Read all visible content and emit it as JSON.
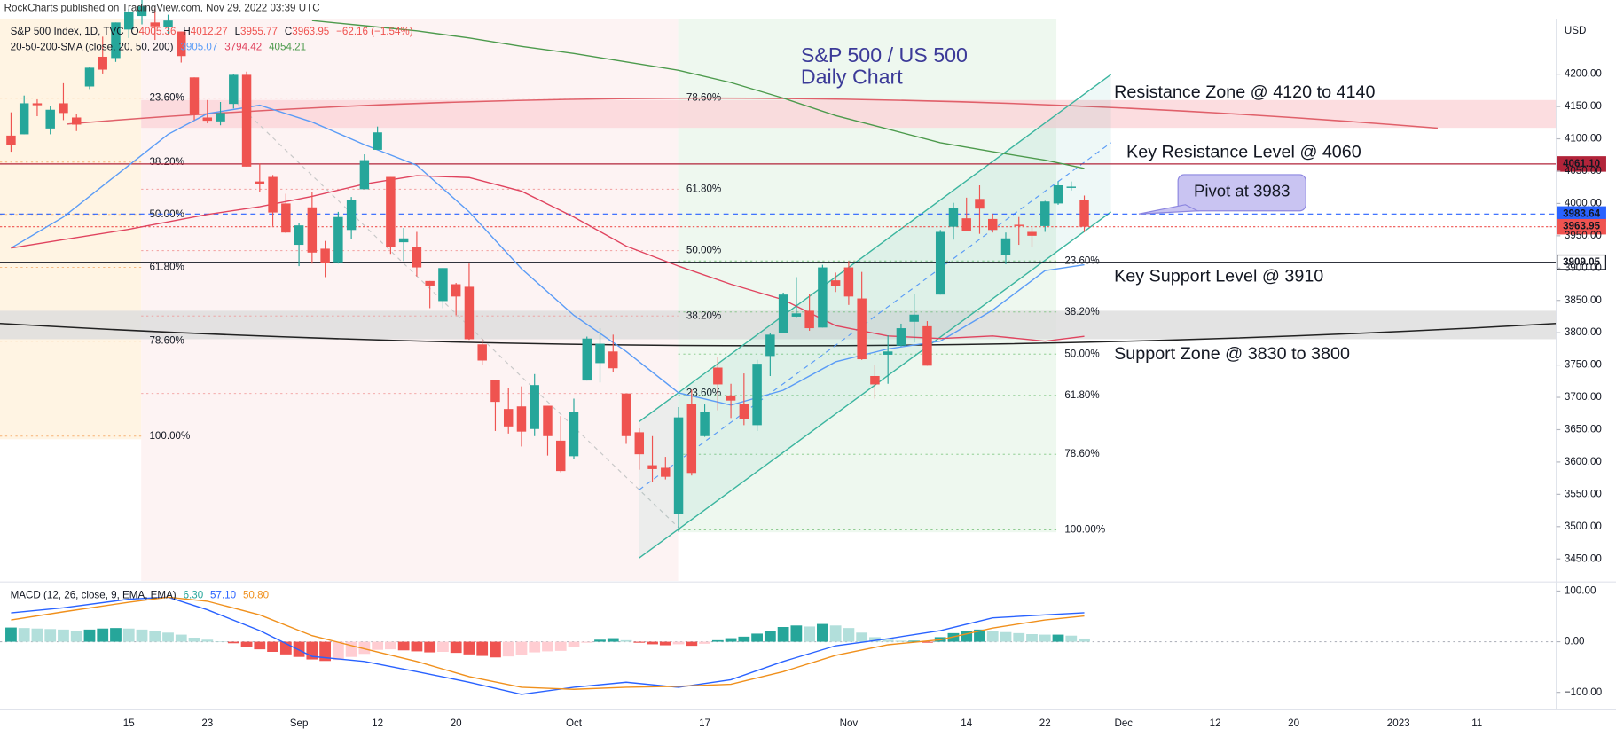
{
  "header": "RockCharts published on TradingView.com, Nov 29, 2022 03:39 UTC",
  "chart_data": [
    {
      "type": "candlestick",
      "title": "S&P 500 / US 500",
      "subtitle": "Daily Chart",
      "symbol": "S&P 500 Index, 1D, TVC",
      "ohlc_prefixes": [
        "O",
        "H",
        "L",
        "C"
      ],
      "change_label": "−62.16 (−1.54%)",
      "indicator": "20-50-200-SMA (close, 20, 50, 200)",
      "currency": "USD",
      "categories": [
        null,
        null,
        null,
        null,
        null,
        null,
        null,
        null,
        null,
        null,
        "15",
        null,
        null,
        null,
        null,
        null,
        "23",
        null,
        null,
        null,
        null,
        null,
        null,
        "Sep",
        null,
        null,
        null,
        null,
        null,
        "12",
        null,
        null,
        null,
        null,
        null,
        "20",
        null,
        null,
        null,
        null,
        null,
        null,
        null,
        null,
        "Oct",
        null,
        null,
        null,
        null,
        null,
        null,
        null,
        null,
        null,
        "17",
        null,
        null,
        null,
        null,
        null,
        null,
        null,
        null,
        null,
        null,
        "Nov",
        null,
        null,
        null,
        null,
        null,
        null,
        null,
        null,
        "14",
        null,
        null,
        null,
        null,
        null,
        "22",
        null,
        null,
        null,
        null,
        null,
        "Dec",
        null,
        null,
        null,
        null,
        null,
        null,
        "12",
        null,
        null,
        null,
        null,
        null,
        "20",
        null,
        null,
        null,
        null,
        null,
        null,
        null,
        "2023",
        null,
        null,
        null,
        null,
        null,
        "11",
        null,
        null,
        null,
        null,
        null,
        null
      ],
      "open": [
        null,
        4105,
        4107,
        4155,
        4116,
        4155,
        4133,
        4181,
        4227,
        4225,
        4269,
        4290,
        4280,
        4273,
        4266,
        4195,
        4133,
        4127,
        4154,
        4199,
        4034,
        4041,
        4000,
        3936,
        3994,
        3930,
        3909,
        3959,
        4022,
        4083,
        4041,
        3940,
        3932,
        3880,
        3849,
        3875,
        3871,
        3782,
        3727,
        3682,
        3686,
        3651,
        3687,
        3633,
        3609,
        3726,
        3753,
        3771,
        3706,
        3646,
        3595,
        3591,
        3520,
        3690,
        3640,
        3746,
        3703,
        3690,
        3657,
        3764,
        3799,
        3825,
        3834,
        3808,
        3881,
        3901,
        3853,
        3733,
        3766,
        3780,
        3817,
        3810,
        3859,
        3964,
        3977,
        4007,
        3976,
        3920,
        3967,
        3956,
        3965,
        4000,
        4024,
        4005.36,
        null,
        null,
        null,
        null,
        null,
        null,
        null,
        null,
        null,
        null,
        null,
        null,
        null,
        null,
        null,
        null,
        null,
        null,
        null,
        null,
        null,
        null,
        null,
        null,
        null,
        null,
        null,
        null,
        null,
        null,
        null,
        null,
        null,
        null,
        null,
        null
      ],
      "high": [
        null,
        4141,
        4167,
        4161,
        4151,
        4186,
        4138,
        4211,
        4258,
        4280,
        4301,
        4325,
        4302,
        4292,
        4266,
        4195,
        4160,
        4157,
        4200,
        4204,
        4062,
        4044,
        4015,
        3970,
        4018,
        3942,
        3987,
        4010,
        4076,
        4119,
        4041,
        3962,
        3956,
        3880,
        3900,
        3877,
        3907,
        3790,
        3727,
        3715,
        3717,
        3736,
        3687,
        3671,
        3698,
        3794,
        3807,
        3797,
        3706,
        3652,
        3640,
        3608,
        3685,
        3712,
        3689,
        3762,
        3721,
        3737,
        3758,
        3799,
        3862,
        3886,
        3860,
        3905,
        3893,
        3911,
        3894,
        3750,
        3796,
        3814,
        3860,
        3818,
        3959,
        4001,
        4009,
        4028,
        3984,
        3955,
        3979,
        3962,
        4004,
        4034,
        4034,
        4012.27,
        null,
        null,
        null,
        null,
        null,
        null,
        null,
        null,
        null,
        null,
        null,
        null,
        null,
        null,
        null,
        null,
        null,
        null,
        null,
        null,
        null,
        null,
        null,
        null,
        null,
        null,
        null,
        null,
        null,
        null,
        null,
        null,
        null,
        null,
        null,
        null
      ],
      "low": [
        null,
        4080,
        4107,
        4135,
        4107,
        4129,
        4112,
        4177,
        4201,
        4219,
        4256,
        4277,
        4253,
        4262,
        4218,
        4129,
        4124,
        4121,
        4147,
        4057,
        4017,
        3965,
        3954,
        3903,
        3907,
        3886,
        3907,
        3945,
        4022,
        4083,
        3922,
        3911,
        3887,
        3838,
        3838,
        3827,
        3789,
        3750,
        3648,
        3644,
        3624,
        3640,
        3610,
        3584,
        3604,
        3726,
        3723,
        3739,
        3628,
        3588,
        3569,
        3573,
        3492,
        3579,
        3639,
        3680,
        3668,
        3657,
        3648,
        3733,
        3799,
        3824,
        3803,
        3808,
        3863,
        3843,
        3758,
        3698,
        3721,
        3779,
        3785,
        3749,
        3859,
        3944,
        3957,
        3953,
        3955,
        3906,
        3936,
        3933,
        3956,
        3998,
        4020,
        3955.77,
        null,
        null,
        null,
        null,
        null,
        null,
        null,
        null,
        null,
        null,
        null,
        null,
        null,
        null,
        null,
        null,
        null,
        null,
        null,
        null,
        null,
        null,
        null,
        null,
        null,
        null,
        null,
        null,
        null,
        null,
        null,
        null,
        null,
        null,
        null,
        null
      ],
      "close": [
        null,
        4091,
        4155,
        4152,
        4145,
        4140,
        4122,
        4210,
        4207,
        4280,
        4297,
        4305,
        4274,
        4283,
        4228,
        4137,
        4128,
        4140,
        4199,
        4057,
        4030,
        3986,
        3955,
        3966,
        3924,
        3908,
        3979,
        4006,
        4067,
        4110,
        3932,
        3946,
        3901,
        3873,
        3900,
        3856,
        3790,
        3757,
        3693,
        3655,
        3647,
        3719,
        3640,
        3586,
        3678,
        3791,
        3783,
        3745,
        3640,
        3612,
        3589,
        3577,
        3669,
        3583,
        3677,
        3720,
        3695,
        3666,
        3752,
        3797,
        3859,
        3830,
        3807,
        3901,
        3872,
        3856,
        3759,
        3720,
        3771,
        3807,
        3828,
        3749,
        3956,
        3993,
        3957,
        3992,
        3959,
        3946,
        3965,
        3950,
        4003,
        4028,
        4026,
        3963.95,
        null,
        null,
        null,
        null,
        null,
        null,
        null,
        null,
        null,
        null,
        null,
        null,
        null,
        null,
        null,
        null,
        null,
        null,
        null,
        null,
        null,
        null,
        null,
        null,
        null,
        null,
        null,
        null,
        null,
        null,
        null,
        null,
        null,
        null,
        null,
        null
      ],
      "up_color": "#26a69a",
      "down_color": "#ef5350",
      "series": [
        {
          "color": "#5b9cf6",
          "x": [
            1,
            5,
            10,
            13,
            16,
            20,
            24,
            28,
            32,
            36,
            40,
            44,
            48,
            52,
            56,
            60,
            64,
            68,
            72,
            76,
            80,
            83
          ],
          "values": [
            3931,
            3979,
            4059,
            4107,
            4139,
            4152,
            4126,
            4091,
            4059,
            3987,
            3899,
            3827,
            3771,
            3707,
            3688,
            3711,
            3755,
            3775,
            3787,
            3835,
            3896,
            3905.07
          ]
        },
        {
          "color": "#e0445f",
          "x": [
            1,
            5,
            10,
            16,
            20,
            24,
            28,
            32,
            36,
            40,
            44,
            48,
            52,
            56,
            60,
            64,
            68,
            72,
            76,
            80,
            83
          ],
          "values": [
            3931,
            3944,
            3960,
            3983,
            3995,
            4011,
            4030,
            4043,
            4040,
            4019,
            3979,
            3934,
            3903,
            3875,
            3851,
            3811,
            3795,
            3791,
            3795,
            3787,
            3794.42
          ]
        },
        {
          "color": "#4c9a4c",
          "x": [
            24,
            28,
            32,
            36,
            40,
            44,
            48,
            52,
            56,
            60,
            64,
            68,
            72,
            76,
            80,
            83
          ],
          "values": [
            4283,
            4275,
            4267,
            4256,
            4243,
            4232,
            4219,
            4206,
            4187,
            4163,
            4136,
            4115,
            4094,
            4080,
            4067,
            4054.21
          ]
        }
      ],
      "ylim": [
        3416,
        4286
      ],
      "yticks": [
        {
          "value": 3450,
          "label": "3450.00"
        },
        {
          "value": 3500,
          "label": "3500.00"
        },
        {
          "value": 3550,
          "label": "3550.00"
        },
        {
          "value": 3600,
          "label": "3600.00"
        },
        {
          "value": 3650,
          "label": "3650.00"
        },
        {
          "value": 3700,
          "label": "3700.00"
        },
        {
          "value": 3750,
          "label": "3750.00"
        },
        {
          "value": 3800,
          "label": "3800.00"
        },
        {
          "value": 3850,
          "label": "3850.00"
        },
        {
          "value": 3900,
          "label": "3900.00"
        },
        {
          "value": 3950,
          "label": "3950.00"
        },
        {
          "value": 4000,
          "label": "4000.00"
        },
        {
          "value": 4050,
          "label": "4050.00"
        },
        {
          "value": 4100,
          "label": "4100.00"
        },
        {
          "value": 4150,
          "label": "4150.00"
        },
        {
          "value": 4200,
          "label": "4200.00"
        }
      ],
      "grid": false,
      "levels": [
        {
          "value": 4061.1,
          "label": "4061.10",
          "color": "#b2243a",
          "style": "solid"
        },
        {
          "value": 3983.64,
          "label": "3983.64",
          "color": "#2962ff",
          "style": "dashed"
        },
        {
          "value": 3963.95,
          "label": "3963.95",
          "color": "#ef5350",
          "style": "dotted"
        },
        {
          "value": 3909.05,
          "label": "3909.05",
          "color": "#131722",
          "style": "solid"
        }
      ],
      "zones": [
        {
          "from": 4117,
          "to": 4160,
          "color": "#fbd5d8",
          "text": "Resistance Zone @ 4120 to 4140",
          "text_color": "#e04a3f"
        },
        {
          "from": 3790,
          "to": 3834,
          "color": "#dcdcdc",
          "text": "Support Zone @ 3830 to 3800",
          "text_color": "#131722"
        }
      ],
      "annotations": [
        {
          "text": "Key Resistance Level @ 4060",
          "color": "#e04a3f"
        },
        {
          "text": "Pivot at 3983",
          "color": "#131722"
        },
        {
          "text": "Key Support Level @ 3910",
          "color": "#131722"
        }
      ],
      "fib_sets": [
        {
          "color": "#f5a25a",
          "labels": [
            "23.60%",
            "38.20%",
            "50.00%",
            "61.80%",
            "78.60%",
            "100.00%"
          ],
          "levels": [
            4163,
            4064,
            3983,
            3901,
            3787,
            3640
          ]
        },
        {
          "color": "#f08a8a",
          "labels": [
            "78.60%",
            "61.80%",
            "50.00%",
            "38.20%",
            "23.60%"
          ],
          "levels": [
            4163,
            4022,
            3927,
            3826,
            3706
          ]
        },
        {
          "color": "#66bb6a",
          "labels": [
            "23.60%",
            "38.20%",
            "50.00%",
            "61.80%",
            "78.60%",
            "100.00%"
          ],
          "levels": [
            3911,
            3832,
            3767,
            3703,
            3612,
            3495
          ]
        }
      ]
    },
    {
      "type": "macd",
      "title": "MACD (12, 26, close, 9, EMA, EMA)",
      "legend_labels": [
        "6.30",
        "57.10",
        "50.80"
      ],
      "values": [
        null,
        28,
        27,
        26,
        25,
        24,
        22,
        24,
        26,
        27,
        26,
        24,
        21,
        18,
        14,
        8,
        4,
        1,
        -3,
        -10,
        -15,
        -20,
        -25,
        -30,
        -35,
        -38,
        -36,
        -30,
        -24,
        -16,
        -15,
        -17,
        -19,
        -21,
        -20,
        -22,
        -25,
        -28,
        -31,
        -29,
        -26,
        -21,
        -19,
        -18,
        -11,
        -2,
        4,
        7,
        3,
        -2,
        -5,
        -7,
        -5,
        -8,
        -4,
        3,
        7,
        10,
        16,
        22,
        29,
        32,
        30,
        35,
        32,
        27,
        18,
        9,
        4,
        2,
        2,
        -2,
        9,
        17,
        21,
        24,
        22,
        19,
        17,
        15,
        14,
        14,
        12,
        6.3,
        null,
        null,
        null,
        null,
        null,
        null,
        null,
        null,
        null,
        null,
        null,
        null,
        null,
        null,
        null,
        null,
        null,
        null,
        null,
        null,
        null,
        null,
        null,
        null,
        null,
        null,
        null,
        null,
        null,
        null,
        null,
        null,
        null,
        null,
        null,
        null
      ],
      "colors": {
        "up": "#26a69a",
        "up_fading": "#b2dfdb",
        "down": "#ef5350",
        "down_fading": "#ffcdd2"
      },
      "series": [
        {
          "color": "#2962ff",
          "x": [
            1,
            5,
            10,
            13,
            16,
            20,
            24,
            28,
            32,
            36,
            40,
            44,
            48,
            52,
            56,
            60,
            64,
            68,
            72,
            76,
            80,
            83
          ],
          "values": [
            57,
            67,
            84,
            88,
            63,
            22,
            -29,
            -39,
            -59,
            -80,
            -104,
            -90,
            -80,
            -90,
            -75,
            -39,
            -8,
            6,
            22,
            47,
            53,
            57.1
          ]
        },
        {
          "color": "#f0901c",
          "x": [
            1,
            5,
            10,
            13,
            16,
            20,
            24,
            28,
            32,
            36,
            40,
            44,
            48,
            52,
            56,
            60,
            64,
            68,
            72,
            76,
            80,
            83
          ],
          "values": [
            43,
            59,
            78,
            88,
            80,
            53,
            12,
            -14,
            -39,
            -69,
            -90,
            -94,
            -90,
            -88,
            -84,
            -59,
            -27,
            -6,
            4,
            27,
            43,
            50.8
          ]
        }
      ],
      "ylim": [
        -133,
        118
      ],
      "yticks": [
        {
          "value": 100,
          "label": "100.00"
        },
        {
          "value": 0,
          "label": "0.00"
        },
        {
          "value": -100,
          "label": "−100.00"
        }
      ]
    }
  ]
}
